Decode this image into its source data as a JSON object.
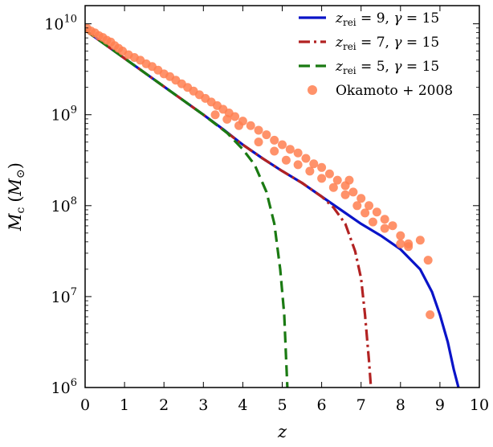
{
  "chart_data": {
    "type": "line",
    "xlabel_main": "z",
    "ylabel_main": "M",
    "ylabel_sub": "c",
    "ylabel_unit_main": "M",
    "ylabel_unit_sub": "⊙",
    "xlim": [
      0,
      10
    ],
    "ylim_log10": [
      6,
      10.2
    ],
    "yscale": "log",
    "x_ticks": [
      0,
      1,
      2,
      3,
      4,
      5,
      6,
      7,
      8,
      9,
      10
    ],
    "y_ticks": [
      {
        "base": "10",
        "exp": "6",
        "value": 6
      },
      {
        "base": "10",
        "exp": "7",
        "value": 7
      },
      {
        "base": "10",
        "exp": "8",
        "value": 8
      },
      {
        "base": "10",
        "exp": "9",
        "value": 9
      },
      {
        "base": "10",
        "exp": "10",
        "value": 10
      }
    ],
    "legend_position": "top-right",
    "series": [
      {
        "name": "z_rei = 9, γ = 15",
        "legend": {
          "z": "z",
          "sub": "rei",
          "rest": " = 9, ",
          "g": "γ",
          "val": " = 15"
        },
        "style": "solid",
        "color": "#0a14c8",
        "points": [
          [
            0,
            9.93
          ],
          [
            1,
            9.62
          ],
          [
            2,
            9.31
          ],
          [
            3,
            9.0
          ],
          [
            3.5,
            8.84
          ],
          [
            4,
            8.67
          ],
          [
            4.5,
            8.52
          ],
          [
            5,
            8.38
          ],
          [
            5.5,
            8.25
          ],
          [
            6,
            8.1
          ],
          [
            6.5,
            7.95
          ],
          [
            7,
            7.8
          ],
          [
            7.5,
            7.67
          ],
          [
            8,
            7.52
          ],
          [
            8.5,
            7.3
          ],
          [
            8.8,
            7.05
          ],
          [
            9.0,
            6.8
          ],
          [
            9.2,
            6.5
          ],
          [
            9.35,
            6.2
          ],
          [
            9.47,
            6.0
          ]
        ]
      },
      {
        "name": "z_rei = 7, γ = 15",
        "legend": {
          "z": "z",
          "sub": "rei",
          "rest": " = 7, ",
          "g": "γ",
          "val": " = 15"
        },
        "style": "dashdot",
        "color": "#b22222",
        "points": [
          [
            0,
            9.93
          ],
          [
            1,
            9.62
          ],
          [
            2,
            9.31
          ],
          [
            3,
            9.0
          ],
          [
            4,
            8.67
          ],
          [
            4.5,
            8.52
          ],
          [
            5,
            8.38
          ],
          [
            5.5,
            8.25
          ],
          [
            6,
            8.1
          ],
          [
            6.3,
            7.98
          ],
          [
            6.6,
            7.8
          ],
          [
            6.85,
            7.5
          ],
          [
            7.0,
            7.2
          ],
          [
            7.1,
            6.8
          ],
          [
            7.2,
            6.3
          ],
          [
            7.25,
            6.0
          ]
        ]
      },
      {
        "name": "z_rei = 5, γ = 15",
        "legend": {
          "z": "z",
          "sub": "rei",
          "rest": " = 5, ",
          "g": "γ",
          "val": " = 15"
        },
        "style": "dashed",
        "color": "#1a7a12",
        "points": [
          [
            0,
            9.93
          ],
          [
            1,
            9.62
          ],
          [
            2,
            9.31
          ],
          [
            3,
            9.0
          ],
          [
            3.6,
            8.8
          ],
          [
            4.0,
            8.62
          ],
          [
            4.3,
            8.45
          ],
          [
            4.6,
            8.15
          ],
          [
            4.8,
            7.8
          ],
          [
            4.95,
            7.3
          ],
          [
            5.05,
            6.8
          ],
          [
            5.1,
            6.3
          ],
          [
            5.13,
            6.0
          ]
        ]
      }
    ],
    "scatter": {
      "name": "Okamoto + 2008",
      "color": "#ff7f50",
      "points": [
        [
          0.05,
          9.95
        ],
        [
          0.15,
          9.92
        ],
        [
          0.25,
          9.9
        ],
        [
          0.35,
          9.87
        ],
        [
          0.45,
          9.85
        ],
        [
          0.55,
          9.82
        ],
        [
          0.65,
          9.8
        ],
        [
          0.75,
          9.76
        ],
        [
          0.85,
          9.73
        ],
        [
          0.95,
          9.7
        ],
        [
          1.1,
          9.66
        ],
        [
          1.25,
          9.63
        ],
        [
          1.4,
          9.6
        ],
        [
          1.55,
          9.56
        ],
        [
          1.7,
          9.53
        ],
        [
          1.85,
          9.49
        ],
        [
          2.0,
          9.45
        ],
        [
          2.15,
          9.42
        ],
        [
          2.3,
          9.38
        ],
        [
          2.45,
          9.34
        ],
        [
          2.6,
          9.3
        ],
        [
          2.75,
          9.26
        ],
        [
          2.9,
          9.22
        ],
        [
          3.05,
          9.18
        ],
        [
          3.2,
          9.14
        ],
        [
          3.35,
          9.1
        ],
        [
          3.5,
          9.06
        ],
        [
          3.65,
          9.02
        ],
        [
          3.8,
          8.98
        ],
        [
          4.0,
          8.93
        ],
        [
          4.2,
          8.88
        ],
        [
          4.4,
          8.83
        ],
        [
          4.6,
          8.78
        ],
        [
          4.8,
          8.72
        ],
        [
          5.0,
          8.67
        ],
        [
          5.2,
          8.62
        ],
        [
          5.4,
          8.58
        ],
        [
          5.6,
          8.52
        ],
        [
          5.8,
          8.46
        ],
        [
          6.0,
          8.42
        ],
        [
          6.2,
          8.35
        ],
        [
          6.4,
          8.28
        ],
        [
          6.6,
          8.22
        ],
        [
          6.8,
          8.15
        ],
        [
          7.0,
          8.08
        ],
        [
          7.2,
          8.0
        ],
        [
          7.4,
          7.93
        ],
        [
          7.6,
          7.85
        ],
        [
          7.8,
          7.78
        ],
        [
          8.0,
          7.67
        ],
        [
          8.2,
          7.58
        ],
        [
          8.5,
          7.62
        ],
        [
          8.7,
          7.4
        ],
        [
          3.3,
          9.0
        ],
        [
          3.6,
          8.95
        ],
        [
          3.9,
          8.88
        ],
        [
          4.4,
          8.7
        ],
        [
          4.8,
          8.6
        ],
        [
          5.1,
          8.5
        ],
        [
          5.4,
          8.45
        ],
        [
          5.7,
          8.38
        ],
        [
          6.0,
          8.3
        ],
        [
          6.3,
          8.2
        ],
        [
          6.6,
          8.12
        ],
        [
          6.7,
          8.28
        ],
        [
          6.9,
          8.0
        ],
        [
          7.1,
          7.92
        ],
        [
          7.3,
          7.82
        ],
        [
          7.6,
          7.75
        ],
        [
          8.0,
          7.58
        ],
        [
          8.2,
          7.55
        ],
        [
          8.75,
          6.8
        ]
      ]
    }
  }
}
